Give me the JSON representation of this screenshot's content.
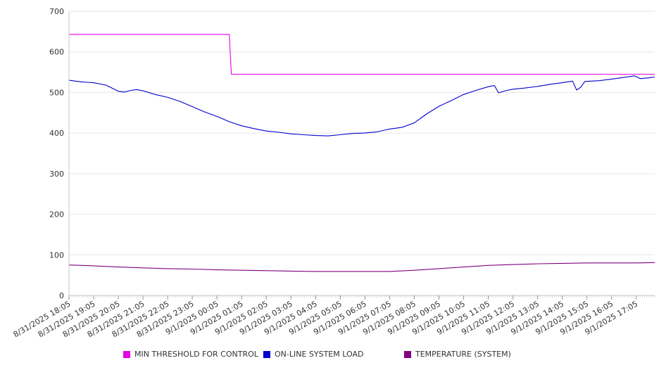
{
  "chart_data": {
    "type": "line",
    "title": "",
    "xlabel": "",
    "ylabel": "",
    "ylim": [
      0,
      700
    ],
    "y_ticks": [
      "0",
      "100",
      "200",
      "300",
      "400",
      "500",
      "600",
      "700"
    ],
    "x_range": [
      "8/31/2025 18:05",
      "9/1/2025 17:50"
    ],
    "x_tick_labels": [
      "8/31/2025 18:05",
      "8/31/2025 19:05",
      "8/31/2025 20:05",
      "8/31/2025 21:05",
      "8/31/2025 22:05",
      "8/31/2025 23:05",
      "9/1/2025 00:05",
      "9/1/2025 01:05",
      "9/1/2025 02:05",
      "9/1/2025 03:05",
      "9/1/2025 04:05",
      "9/1/2025 05:05",
      "9/1/2025 06:05",
      "9/1/2025 07:05",
      "9/1/2025 08:05",
      "9/1/2025 09:05",
      "9/1/2025 10:05",
      "9/1/2025 11:05",
      "9/1/2025 12:05",
      "9/1/2025 13:05",
      "9/1/2025 14:05",
      "9/1/2025 15:05",
      "9/1/2025 16:05",
      "9/1/2025 17:05"
    ],
    "grid": "horizontal",
    "legend_position": "bottom",
    "series": [
      {
        "name": "MIN THRESHOLD FOR CONTROL",
        "color": "#e600e6",
        "points": [
          [
            "8/31/2025 18:05",
            643
          ],
          [
            "9/1/2025 00:35",
            643
          ],
          [
            "9/1/2025 00:40",
            545
          ],
          [
            "9/1/2025 17:50",
            545
          ]
        ]
      },
      {
        "name": "ON-LINE SYSTEM LOAD",
        "color": "#0000cc",
        "points": [
          [
            "8/31/2025 18:05",
            530
          ],
          [
            "8/31/2025 18:35",
            526
          ],
          [
            "8/31/2025 19:05",
            524
          ],
          [
            "8/31/2025 19:35",
            518
          ],
          [
            "8/31/2025 20:05",
            503
          ],
          [
            "8/31/2025 20:20",
            501
          ],
          [
            "8/31/2025 20:35",
            505
          ],
          [
            "8/31/2025 20:50",
            507
          ],
          [
            "8/31/2025 21:05",
            504
          ],
          [
            "8/31/2025 21:35",
            495
          ],
          [
            "8/31/2025 22:05",
            488
          ],
          [
            "8/31/2025 22:35",
            478
          ],
          [
            "8/31/2025 23:05",
            465
          ],
          [
            "8/31/2025 23:35",
            452
          ],
          [
            "9/1/2025 00:05",
            441
          ],
          [
            "9/1/2025 00:35",
            428
          ],
          [
            "9/1/2025 01:05",
            418
          ],
          [
            "9/1/2025 01:35",
            411
          ],
          [
            "9/1/2025 02:05",
            405
          ],
          [
            "9/1/2025 02:35",
            402
          ],
          [
            "9/1/2025 03:05",
            398
          ],
          [
            "9/1/2025 03:35",
            396
          ],
          [
            "9/1/2025 04:05",
            394
          ],
          [
            "9/1/2025 04:35",
            393
          ],
          [
            "9/1/2025 05:05",
            396
          ],
          [
            "9/1/2025 05:35",
            399
          ],
          [
            "9/1/2025 06:05",
            400
          ],
          [
            "9/1/2025 06:35",
            403
          ],
          [
            "9/1/2025 07:05",
            410
          ],
          [
            "9/1/2025 07:35",
            414
          ],
          [
            "9/1/2025 08:05",
            425
          ],
          [
            "9/1/2025 08:35",
            447
          ],
          [
            "9/1/2025 09:05",
            466
          ],
          [
            "9/1/2025 09:35",
            480
          ],
          [
            "9/1/2025 10:05",
            495
          ],
          [
            "9/1/2025 10:35",
            505
          ],
          [
            "9/1/2025 11:05",
            514
          ],
          [
            "9/1/2025 11:20",
            517
          ],
          [
            "9/1/2025 11:30",
            499
          ],
          [
            "9/1/2025 11:50",
            505
          ],
          [
            "9/1/2025 12:05",
            508
          ],
          [
            "9/1/2025 12:35",
            511
          ],
          [
            "9/1/2025 13:05",
            515
          ],
          [
            "9/1/2025 13:35",
            520
          ],
          [
            "9/1/2025 14:05",
            524
          ],
          [
            "9/1/2025 14:30",
            528
          ],
          [
            "9/1/2025 14:40",
            506
          ],
          [
            "9/1/2025 14:50",
            513
          ],
          [
            "9/1/2025 15:00",
            527
          ],
          [
            "9/1/2025 15:35",
            529
          ],
          [
            "9/1/2025 16:05",
            533
          ],
          [
            "9/1/2025 16:35",
            537
          ],
          [
            "9/1/2025 17:00",
            541
          ],
          [
            "9/1/2025 17:15",
            534
          ],
          [
            "9/1/2025 17:35",
            536
          ],
          [
            "9/1/2025 17:50",
            538
          ]
        ]
      },
      {
        "name": "TEMPERATURE (SYSTEM)",
        "color": "#800080",
        "points": [
          [
            "8/31/2025 18:05",
            75
          ],
          [
            "8/31/2025 19:05",
            73
          ],
          [
            "8/31/2025 20:05",
            70
          ],
          [
            "8/31/2025 21:05",
            68
          ],
          [
            "8/31/2025 22:05",
            66
          ],
          [
            "8/31/2025 23:05",
            65
          ],
          [
            "9/1/2025 00:05",
            63
          ],
          [
            "9/1/2025 01:05",
            62
          ],
          [
            "9/1/2025 02:05",
            61
          ],
          [
            "9/1/2025 03:05",
            60
          ],
          [
            "9/1/2025 04:05",
            59
          ],
          [
            "9/1/2025 05:05",
            59
          ],
          [
            "9/1/2025 06:05",
            59
          ],
          [
            "9/1/2025 07:05",
            59
          ],
          [
            "9/1/2025 08:05",
            62
          ],
          [
            "9/1/2025 09:05",
            66
          ],
          [
            "9/1/2025 10:05",
            70
          ],
          [
            "9/1/2025 11:05",
            74
          ],
          [
            "9/1/2025 12:05",
            76
          ],
          [
            "9/1/2025 13:05",
            78
          ],
          [
            "9/1/2025 14:05",
            79
          ],
          [
            "9/1/2025 15:05",
            80
          ],
          [
            "9/1/2025 16:05",
            80
          ],
          [
            "9/1/2025 17:05",
            80
          ],
          [
            "9/1/2025 17:50",
            81
          ]
        ]
      }
    ]
  }
}
